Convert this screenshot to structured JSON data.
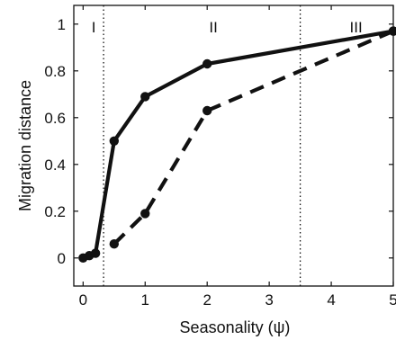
{
  "chart_data": {
    "type": "line",
    "xlabel": "Seasonality (ψ)",
    "ylabel": "Migration distance",
    "xlim": [
      -0.15,
      5
    ],
    "ylim": [
      -0.12,
      1.08
    ],
    "xticks": [
      "0",
      "1",
      "2",
      "3",
      "4",
      "5"
    ],
    "yticks": [
      "0",
      "0.2",
      "0.4",
      "0.6",
      "0.8",
      "1"
    ],
    "grid": false,
    "legend": "none",
    "series": [
      {
        "style": "solid",
        "color": "#111111",
        "x": [
          0,
          0.1,
          0.2,
          0.5,
          1,
          2,
          5
        ],
        "y": [
          0,
          0.01,
          0.02,
          0.5,
          0.69,
          0.83,
          0.97
        ]
      },
      {
        "style": "dashed",
        "color": "#111111",
        "x": [
          0.5,
          1,
          2,
          5
        ],
        "y": [
          0.06,
          0.19,
          0.63,
          0.97
        ]
      }
    ],
    "region_boundaries": [
      0.33,
      3.5
    ],
    "regions": [
      {
        "label": "I",
        "x": 0.17
      },
      {
        "label": "II",
        "x": 2.1
      },
      {
        "label": "III",
        "x": 4.4
      }
    ]
  }
}
